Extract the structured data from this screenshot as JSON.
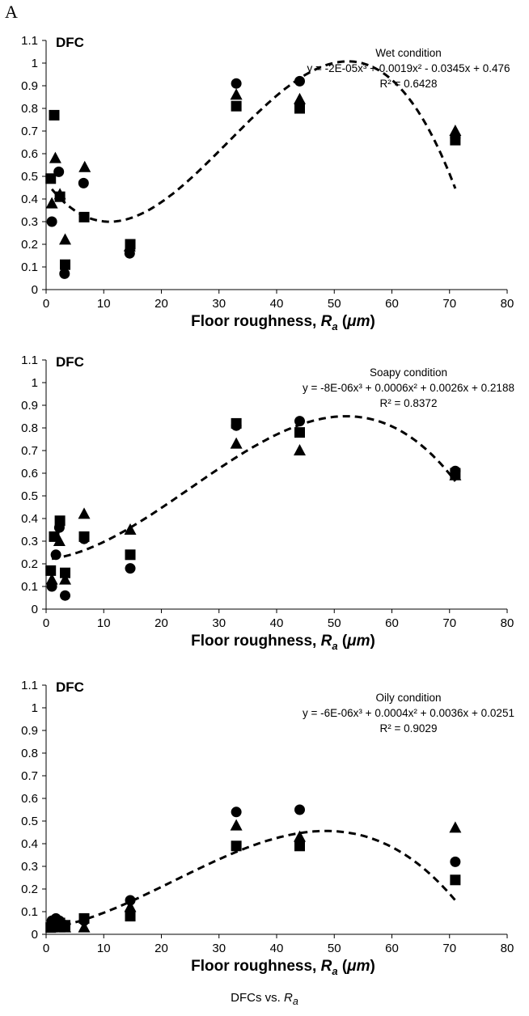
{
  "panel_label": "A",
  "caption": "DFCs vs. Ra",
  "colors": {
    "marker": "#000000",
    "trend": "#000000"
  },
  "chart_data": [
    {
      "type": "scatter",
      "ylabel": "DFC",
      "xlabel": "Floor roughness, Ra (μm)",
      "xlim": [
        0,
        80
      ],
      "ylim": [
        0,
        1.1
      ],
      "x_ticks": [
        0,
        10,
        20,
        30,
        40,
        50,
        60,
        70,
        80
      ],
      "y_ticks": [
        0,
        0.1,
        0.2,
        0.3,
        0.4,
        0.5,
        0.6,
        0.7,
        0.8,
        0.9,
        1,
        1.1
      ],
      "grid": false,
      "annotation": [
        "Wet condition",
        "y = -2E-05x³ + 0.0019x² - 0.0345x + 0.476",
        "R² = 0.6428"
      ],
      "trendline": {
        "style": "dashed",
        "coefficients": [
          -2e-05,
          0.0019,
          -0.0345,
          0.476
        ],
        "x_range": [
          1,
          71
        ]
      },
      "series": [
        {
          "marker": "circle",
          "x": [
            1,
            2.2,
            3.2,
            6.5,
            14.5,
            33,
            44,
            71
          ],
          "y": [
            0.3,
            0.52,
            0.07,
            0.47,
            0.16,
            0.91,
            0.92,
            0.67
          ]
        },
        {
          "marker": "square",
          "x": [
            0.8,
            1.4,
            2.4,
            3.3,
            6.6,
            14.6,
            33,
            44,
            71
          ],
          "y": [
            0.49,
            0.77,
            0.41,
            0.11,
            0.32,
            0.2,
            0.81,
            0.8,
            0.66
          ]
        },
        {
          "marker": "triangle",
          "x": [
            1,
            1.6,
            2.4,
            3.3,
            6.7,
            14.5,
            33,
            44,
            71
          ],
          "y": [
            0.38,
            0.58,
            0.42,
            0.22,
            0.54,
            0.19,
            0.86,
            0.84,
            0.7
          ]
        }
      ]
    },
    {
      "type": "scatter",
      "ylabel": "DFC",
      "xlabel": "Floor roughness, Ra (μm)",
      "xlim": [
        0,
        80
      ],
      "ylim": [
        0,
        1.1
      ],
      "x_ticks": [
        0,
        10,
        20,
        30,
        40,
        50,
        60,
        70,
        80
      ],
      "y_ticks": [
        0,
        0.1,
        0.2,
        0.3,
        0.4,
        0.5,
        0.6,
        0.7,
        0.8,
        0.9,
        1,
        1.1
      ],
      "grid": false,
      "annotation": [
        "Soapy condition",
        "y = -8E-06x³ + 0.0006x² + 0.0026x + 0.2188",
        "R² = 0.8372"
      ],
      "trendline": {
        "style": "dashed",
        "coefficients": [
          -8e-06,
          0.0006,
          0.0026,
          0.2188
        ],
        "x_range": [
          1,
          71
        ]
      },
      "series": [
        {
          "marker": "circle",
          "x": [
            1,
            1.7,
            2.3,
            3.3,
            6.6,
            14.6,
            33,
            44,
            71
          ],
          "y": [
            0.1,
            0.24,
            0.36,
            0.06,
            0.31,
            0.18,
            0.81,
            0.83,
            0.61
          ]
        },
        {
          "marker": "square",
          "x": [
            0.8,
            1.4,
            2.4,
            3.3,
            6.6,
            14.6,
            33,
            44,
            71
          ],
          "y": [
            0.17,
            0.32,
            0.39,
            0.16,
            0.32,
            0.24,
            0.82,
            0.78,
            0.6
          ]
        },
        {
          "marker": "triangle",
          "x": [
            1,
            2.3,
            3.3,
            6.6,
            14.6,
            33,
            44,
            71
          ],
          "y": [
            0.13,
            0.3,
            0.13,
            0.42,
            0.35,
            0.73,
            0.7,
            0.59
          ]
        }
      ]
    },
    {
      "type": "scatter",
      "ylabel": "DFC",
      "xlabel": "Floor roughness, Ra (μm)",
      "xlim": [
        0,
        80
      ],
      "ylim": [
        0,
        1.1
      ],
      "x_ticks": [
        0,
        10,
        20,
        30,
        40,
        50,
        60,
        70,
        80
      ],
      "y_ticks": [
        0,
        0.1,
        0.2,
        0.3,
        0.4,
        0.5,
        0.6,
        0.7,
        0.8,
        0.9,
        1,
        1.1
      ],
      "grid": false,
      "annotation": [
        "Oily condition",
        "y = -6E-06x³ + 0.0004x² + 0.0036x + 0.0251",
        "R² = 0.9029"
      ],
      "trendline": {
        "style": "dashed",
        "coefficients": [
          -6e-06,
          0.0004,
          0.0036,
          0.0251
        ],
        "x_range": [
          1,
          71
        ]
      },
      "series": [
        {
          "marker": "circle",
          "x": [
            1,
            1.7,
            2.3,
            3.3,
            6.6,
            14.6,
            33,
            44,
            71
          ],
          "y": [
            0.06,
            0.07,
            0.06,
            0.04,
            0.06,
            0.15,
            0.54,
            0.55,
            0.32
          ]
        },
        {
          "marker": "square",
          "x": [
            0.8,
            1.4,
            2.4,
            3.3,
            6.6,
            14.6,
            33,
            44,
            71
          ],
          "y": [
            0.03,
            0.04,
            0.05,
            0.04,
            0.07,
            0.08,
            0.39,
            0.39,
            0.24
          ]
        },
        {
          "marker": "triangle",
          "x": [
            1,
            2.3,
            3.3,
            6.6,
            14.6,
            33,
            44,
            71
          ],
          "y": [
            0.03,
            0.03,
            0.03,
            0.03,
            0.12,
            0.48,
            0.43,
            0.47
          ]
        }
      ]
    }
  ]
}
